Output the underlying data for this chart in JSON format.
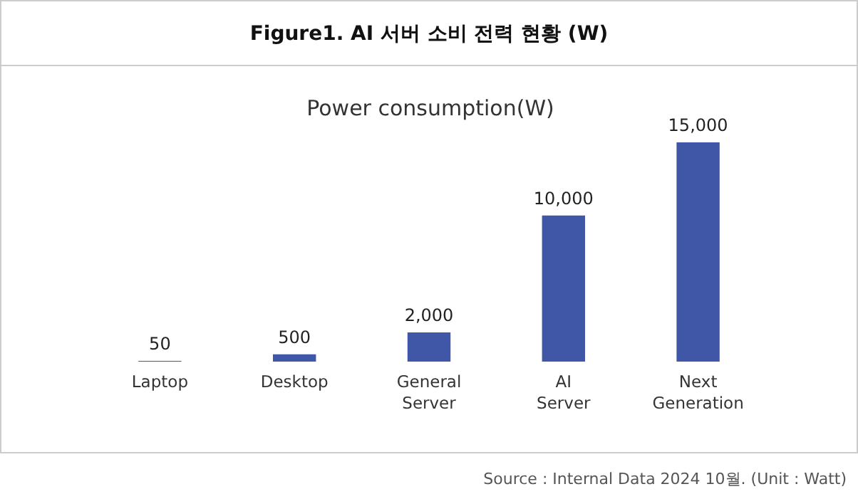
{
  "chart_data": {
    "type": "bar",
    "title": "Figure1. AI 서버 소비 전력 현황 (W)",
    "subtitle": "Power consumption(W)",
    "categories": [
      "Laptop",
      "Desktop",
      "General Server",
      "AI Server",
      "Next Generation"
    ],
    "values": [
      50,
      500,
      2000,
      10000,
      15000
    ],
    "color": "#3f57a6",
    "value_labels": [
      "50",
      "500",
      "2,000",
      "10,000",
      "15,000"
    ],
    "annotations": [
      "Source : Internal Data 2024 10월. (Unit : Watt)"
    ]
  }
}
